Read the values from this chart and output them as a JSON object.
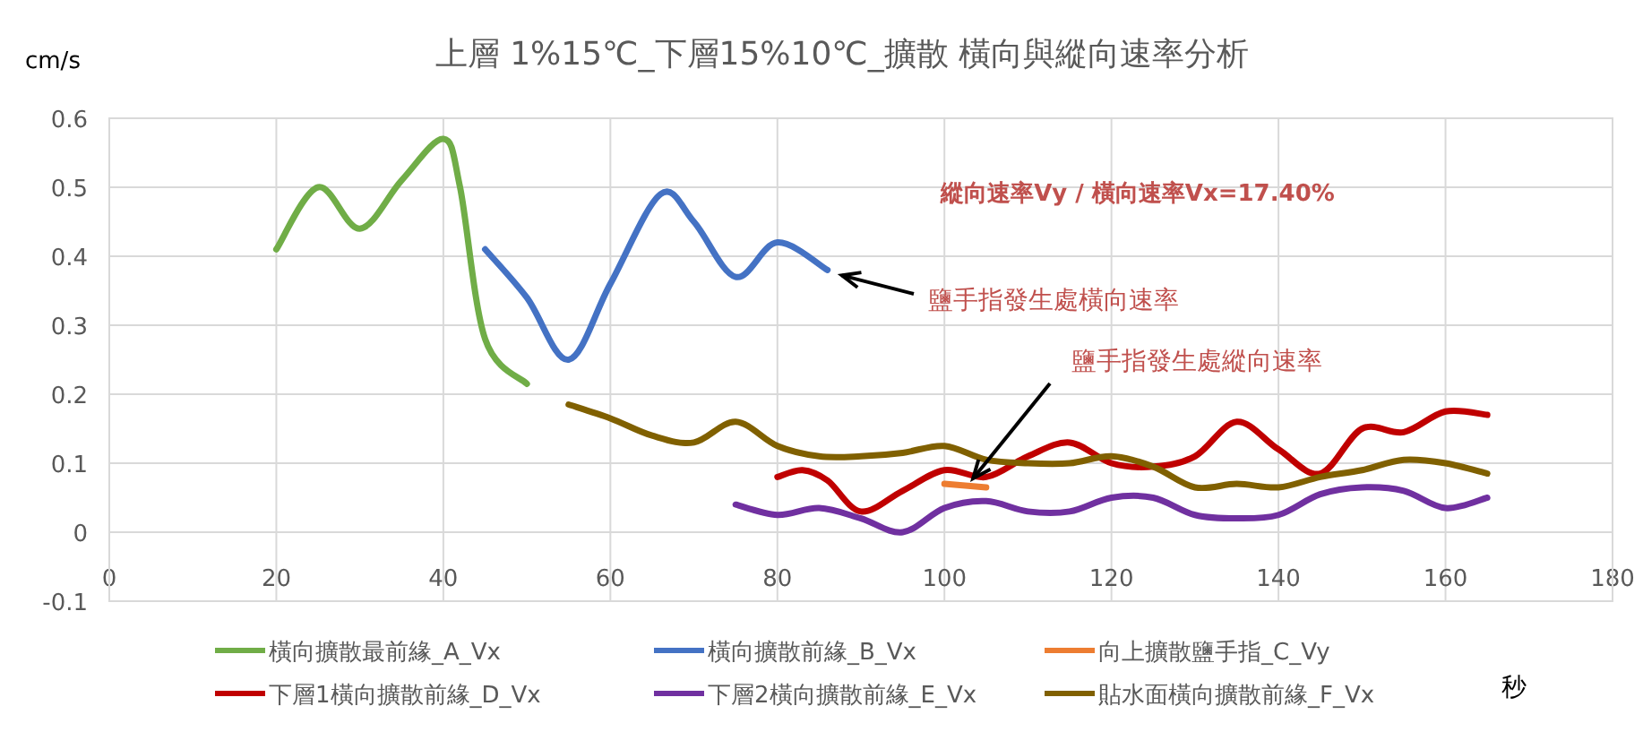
{
  "chart_data": {
    "type": "line",
    "title": "上層 1%15℃_下層15%10℃_擴散 橫向與縱向速率分析",
    "ylabel": "cm/s",
    "xlabel": "秒",
    "xlim": [
      0,
      180
    ],
    "xticks": [
      0,
      20,
      40,
      60,
      80,
      100,
      120,
      140,
      160,
      180
    ],
    "ylim": [
      -0.1,
      0.6
    ],
    "yticks": [
      -0.1,
      0,
      0.1,
      0.2,
      0.3,
      0.4,
      0.5,
      0.6
    ],
    "grid": true,
    "legend": "bottom",
    "series": [
      {
        "name": "橫向擴散最前緣_A_Vx",
        "color": "#70ad47",
        "x": [
          20,
          25,
          30,
          35,
          40,
          42,
          45,
          50
        ],
        "values": [
          0.41,
          0.5,
          0.44,
          0.51,
          0.57,
          0.5,
          0.28,
          0.215
        ]
      },
      {
        "name": "橫向擴散前緣_B_Vx",
        "color": "#4472c4",
        "x": [
          45,
          50,
          55,
          60,
          66,
          70,
          75,
          80,
          86
        ],
        "values": [
          0.41,
          0.34,
          0.25,
          0.36,
          0.49,
          0.45,
          0.37,
          0.42,
          0.38
        ]
      },
      {
        "name": "向上擴散鹽手指_C_Vy",
        "color": "#ed7d31",
        "x": [
          100,
          105
        ],
        "values": [
          0.07,
          0.065
        ]
      },
      {
        "name": "下層1橫向擴散前緣_D_Vx",
        "color": "#c00000",
        "x": [
          80,
          83,
          86,
          90,
          95,
          100,
          105,
          110,
          115,
          120,
          125,
          130,
          135,
          140,
          145,
          150,
          155,
          160,
          165
        ],
        "values": [
          0.08,
          0.09,
          0.075,
          0.03,
          0.06,
          0.09,
          0.08,
          0.11,
          0.13,
          0.1,
          0.095,
          0.11,
          0.16,
          0.12,
          0.085,
          0.15,
          0.145,
          0.175,
          0.17
        ]
      },
      {
        "name": "下層2橫向擴散前緣_E_Vx",
        "color": "#7030a0",
        "x": [
          75,
          80,
          85,
          90,
          95,
          100,
          105,
          110,
          115,
          120,
          125,
          130,
          135,
          140,
          145,
          150,
          155,
          160,
          165
        ],
        "values": [
          0.04,
          0.025,
          0.035,
          0.02,
          0.0,
          0.035,
          0.045,
          0.03,
          0.03,
          0.05,
          0.05,
          0.025,
          0.02,
          0.025,
          0.055,
          0.065,
          0.06,
          0.035,
          0.05
        ]
      },
      {
        "name": "貼水面橫向擴散前緣_F_Vx",
        "color": "#806000",
        "x": [
          55,
          60,
          65,
          70,
          75,
          80,
          85,
          90,
          95,
          100,
          105,
          110,
          115,
          120,
          125,
          130,
          135,
          140,
          145,
          150,
          155,
          160,
          165
        ],
        "values": [
          0.185,
          0.165,
          0.14,
          0.13,
          0.16,
          0.125,
          0.11,
          0.11,
          0.115,
          0.125,
          0.105,
          0.1,
          0.1,
          0.11,
          0.095,
          0.065,
          0.07,
          0.065,
          0.08,
          0.09,
          0.105,
          0.1,
          0.085
        ]
      }
    ],
    "annotations": [
      "縱向速率Vy / 橫向速率Vx=17.40%",
      {
        "text": "鹽手指發生處橫向速率",
        "x": 86,
        "y": 0.38
      },
      {
        "text": "鹽手指發生處縱向速率",
        "x": 103,
        "y": 0.07
      }
    ]
  }
}
